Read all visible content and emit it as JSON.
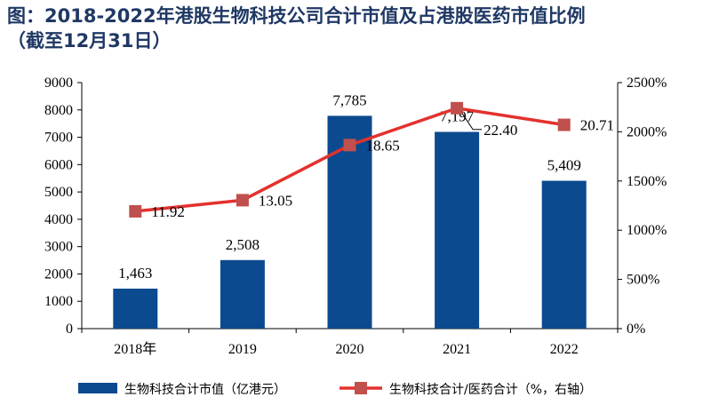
{
  "page": {
    "title_line1": "图：2018-2022年港股生物科技公司合计市值及占港股医药市值比例",
    "title_line2": "（截至12月31日）"
  },
  "colors": {
    "bar": "#0b4a8f",
    "line": "#e3312d",
    "marker": "#c0504d",
    "title": "#1f3864"
  },
  "chart_data": {
    "type": "bar",
    "categories": [
      "2018年",
      "2019",
      "2020",
      "2021",
      "2022"
    ],
    "ylim": [
      0,
      9000
    ],
    "yticks": [
      "0",
      "1000",
      "2000",
      "3000",
      "4000",
      "5000",
      "6000",
      "7000",
      "8000",
      "9000"
    ],
    "y2lim": [
      0,
      2500
    ],
    "y2ticks": [
      "0%",
      "500%",
      "1000%",
      "1500%",
      "2000%",
      "2500%"
    ],
    "series": [
      {
        "name": "生物科技合计市值（亿港元）",
        "type": "bar",
        "axis": "left",
        "values": [
          1463,
          2508,
          7785,
          7197,
          5409
        ],
        "labels": [
          "1,463",
          "2,508",
          "7,785",
          "7,197",
          "5,409"
        ]
      },
      {
        "name": "生物科技合计/医药合计（%，右轴）",
        "type": "line",
        "axis": "right",
        "values": [
          11.92,
          13.05,
          18.65,
          22.4,
          20.71
        ],
        "plot_values": [
          1192,
          1305,
          1865,
          2240,
          2071
        ],
        "labels": [
          "11.92",
          "13.05",
          "18.65",
          "22.40",
          "20.71"
        ]
      }
    ],
    "legend": "bottom"
  }
}
